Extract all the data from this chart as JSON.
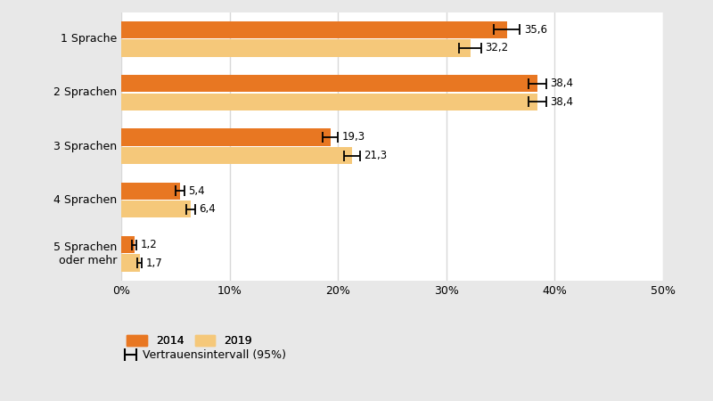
{
  "categories": [
    "1 Sprache",
    "2 Sprachen",
    "3 Sprachen",
    "4 Sprachen",
    "5 Sprachen\noder mehr"
  ],
  "values_2014": [
    35.6,
    38.4,
    19.3,
    5.4,
    1.2
  ],
  "values_2019": [
    32.2,
    38.4,
    21.3,
    6.4,
    1.7
  ],
  "errors_2014": [
    1.2,
    0.8,
    0.7,
    0.4,
    0.2
  ],
  "errors_2019": [
    1.0,
    0.8,
    0.7,
    0.4,
    0.2
  ],
  "color_2014": "#E87722",
  "color_2019": "#F5C87A",
  "label_2014": "2014",
  "label_2019": "2019",
  "xlim": [
    0,
    50
  ],
  "xticks": [
    0,
    10,
    20,
    30,
    40,
    50
  ],
  "xticklabels": [
    "0%",
    "10%",
    "20%",
    "30%",
    "40%",
    "50%"
  ],
  "figure_bg": "#E8E8E8",
  "plot_bg": "#FFFFFF",
  "grid_color": "#D8D8D8",
  "bar_height": 0.32,
  "bar_gap": 0.02,
  "legend_label_interval": "Vertrauensintervall (95%)"
}
